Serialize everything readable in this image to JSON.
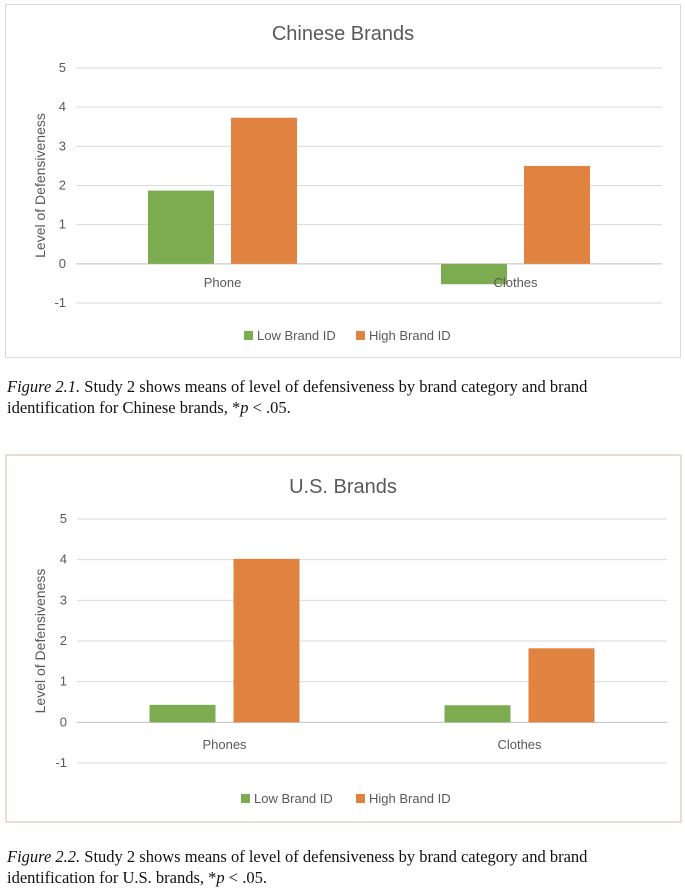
{
  "charts": [
    {
      "caption": {
        "label": "Figure 2.1.",
        "text_before_p": " Study 2 shows means of level of defensiveness by brand category and brand identification for Chinese brands, *",
        "p": "p",
        "text_after_p": " < .05."
      }
    },
    {
      "caption": {
        "label": "Figure 2.2.",
        "text_before_p": " Study 2 shows means of level of defensiveness by brand category and brand identification for U.S. brands, *",
        "p": "p",
        "text_after_p": " < .05."
      }
    }
  ],
  "chart_data": [
    {
      "type": "bar",
      "title": "Chinese Brands",
      "xlabel": "",
      "ylabel": "Level of Defensiveness",
      "ylim": [
        -1,
        5
      ],
      "yticks": [
        "-1",
        "0",
        "1",
        "2",
        "3",
        "4",
        "5"
      ],
      "categories": [
        "Phone",
        "Clothes"
      ],
      "series": [
        {
          "name": "Low Brand ID",
          "values": [
            1.87,
            -0.52
          ],
          "color": "#7dab50"
        },
        {
          "name": "High Brand ID",
          "values": [
            3.73,
            2.5
          ],
          "color": "#e08340"
        }
      ],
      "legend": "bottom",
      "grid": true
    },
    {
      "type": "bar",
      "title": "U.S. Brands",
      "xlabel": "",
      "ylabel": "Level of Defensiveness",
      "ylim": [
        -1,
        5
      ],
      "yticks": [
        "-1",
        "0",
        "1",
        "2",
        "3",
        "4",
        "5"
      ],
      "categories": [
        "Phones",
        "Clothes"
      ],
      "series": [
        {
          "name": "Low Brand ID",
          "values": [
            0.43,
            0.42
          ],
          "color": "#7dab50"
        },
        {
          "name": "High Brand ID",
          "values": [
            4.02,
            1.82
          ],
          "color": "#e08340"
        }
      ],
      "legend": "bottom",
      "grid": true
    }
  ]
}
